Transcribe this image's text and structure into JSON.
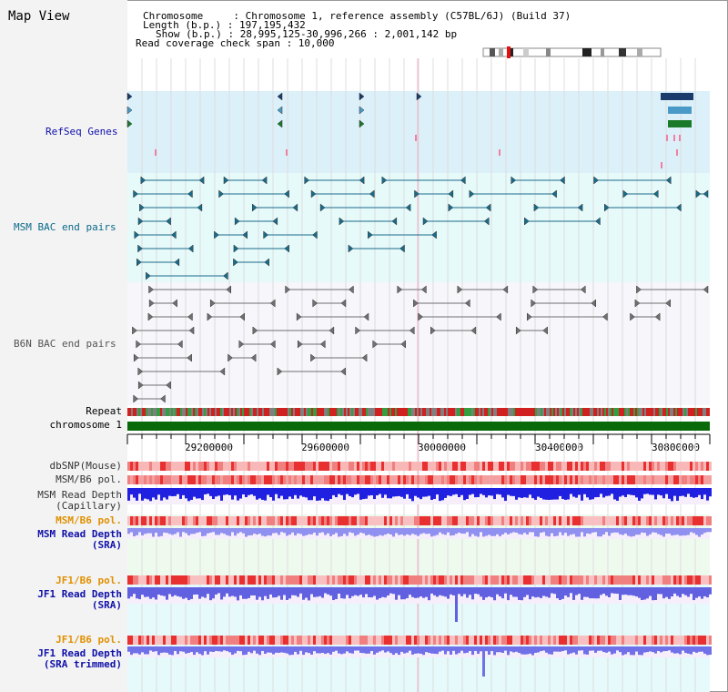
{
  "title": "Map View",
  "info": {
    "chromosome": "Chromosome     : Chromosome 1, reference assembly (C57BL/6J) (Build 37)",
    "length": "Length (b.p.) : 197,195,432",
    "show": "Show (b.p.) : 28,995,125-30,996,266 : 2,001,142 bp",
    "coverage": "Read coverage check span : 10,000"
  },
  "tracks": {
    "refseq": "RefSeq Genes",
    "msm_bac": "MSM BAC end pairs",
    "b6n_bac": "B6N BAC end pairs",
    "repeat": "Repeat",
    "chromosome": "chromosome 1",
    "dbsnp": "dbSNP(Mouse)",
    "msm_b6_pol": "MSM/B6 pol.",
    "msm_depth_cap_1": "MSM Read Depth",
    "msm_depth_cap_2": "(Capillary)",
    "msm_b6_pol2": "MSM/B6 pol.",
    "msm_depth_sra_1": "MSM Read Depth",
    "msm_depth_sra_2": "(SRA)",
    "jf1_b6_pol": "JF1/B6 pol.",
    "jf1_depth_sra_1": "JF1 Read Depth",
    "jf1_depth_sra_2": "(SRA)",
    "jf1_b6_pol2": "JF1/B6 pol.",
    "jf1_depth_trim_1": "JF1 Read Depth",
    "jf1_depth_trim_2": "(SRA trimmed)"
  },
  "axis": {
    "ticks": [
      "29200000",
      "29600000",
      "30000000",
      "30400000",
      "30800000"
    ]
  },
  "colors": {
    "refseq_bg": "#dcf0fa",
    "msm_bg": "#e6fafa",
    "b6n_bg": "#f4f4fa",
    "msm_pair": "#1a6b8a",
    "b6n_pair": "#707070",
    "gene_dark": "#1a3b6b",
    "gene_mid": "#4a9ac8",
    "gene_green": "#1a7a2a",
    "chromosome": "#0a6a0a",
    "label_blue": "#1010aa",
    "label_teal": "#0a6a8a",
    "label_orange": "#e09000"
  }
}
